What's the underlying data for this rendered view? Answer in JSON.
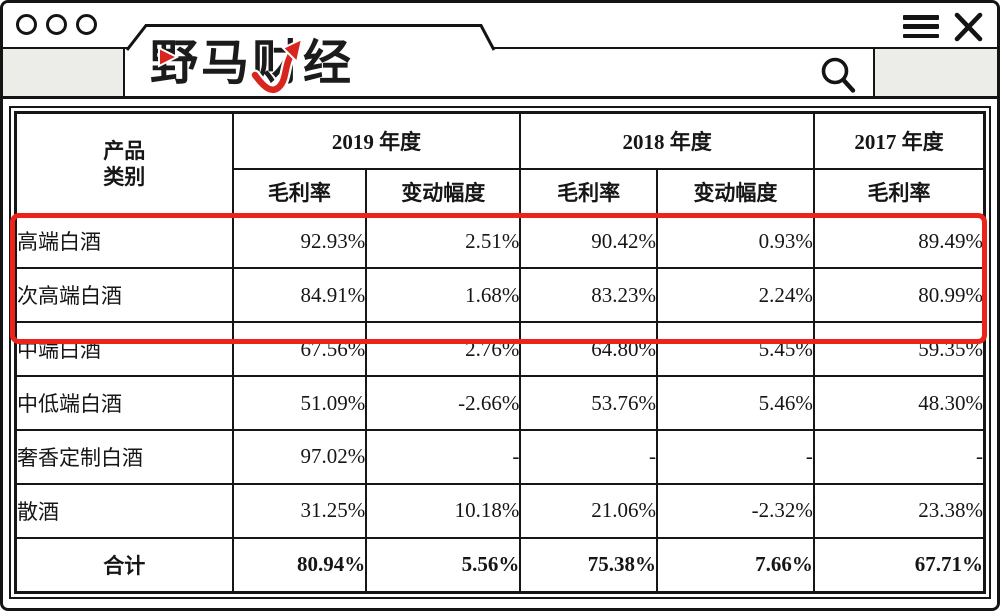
{
  "window": {
    "brand": "野马财经",
    "icons": {
      "window_buttons": "three-circles",
      "menu_icon": "hamburger-menu",
      "close_icon": "close-x",
      "search_icon": "magnifying-glass",
      "brand_marks": [
        "red-play-triangle",
        "red-rising-arrow"
      ]
    }
  },
  "colors": {
    "brand_red": "#d8261f",
    "highlight_box_red": "#ec2318",
    "chrome_gray": "#ecece9",
    "line_black": "#141414"
  },
  "table": {
    "header": {
      "category_line1": "产品",
      "category_line2": "类别",
      "year_groups": [
        {
          "label": "2019 年度",
          "columns": [
            "毛利率",
            "变动幅度"
          ]
        },
        {
          "label": "2018 年度",
          "columns": [
            "毛利率",
            "变动幅度"
          ]
        },
        {
          "label": "2017 年度",
          "columns": [
            "毛利率"
          ]
        }
      ]
    },
    "rows": [
      {
        "category": "高端白酒",
        "values": [
          "92.93%",
          "2.51%",
          "90.42%",
          "0.93%",
          "89.49%"
        ],
        "highlighted": true
      },
      {
        "category": "次高端白酒",
        "values": [
          "84.91%",
          "1.68%",
          "83.23%",
          "2.24%",
          "80.99%"
        ],
        "highlighted": true
      },
      {
        "category": "中端白酒",
        "values": [
          "67.56%",
          "2.76%",
          "64.80%",
          "5.45%",
          "59.35%"
        ],
        "highlighted": false
      },
      {
        "category": "中低端白酒",
        "values": [
          "51.09%",
          "-2.66%",
          "53.76%",
          "5.46%",
          "48.30%"
        ],
        "highlighted": false
      },
      {
        "category": "奢香定制白酒",
        "values": [
          "97.02%",
          "-",
          "-",
          "-",
          "-"
        ],
        "highlighted": false
      },
      {
        "category": "散酒",
        "values": [
          "31.25%",
          "10.18%",
          "21.06%",
          "-2.32%",
          "23.38%"
        ],
        "highlighted": false
      }
    ],
    "total_row": {
      "category": "合计",
      "values": [
        "80.94%",
        "5.56%",
        "75.38%",
        "7.66%",
        "67.71%"
      ]
    }
  }
}
